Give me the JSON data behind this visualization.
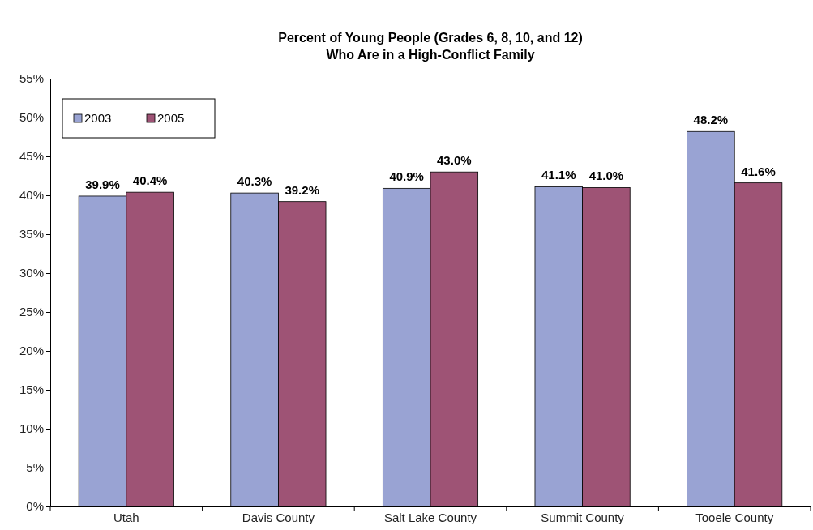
{
  "chart_data": {
    "type": "bar",
    "title": "Percent of Young People (Grades 6, 8, 10, and 12)\nWho Are in a High-Conflict Family",
    "categories": [
      "Utah",
      "Davis County",
      "Salt Lake County",
      "Summit County",
      "Tooele County"
    ],
    "series": [
      {
        "name": "2003",
        "color": "#99a3d3",
        "values": [
          39.9,
          40.3,
          40.9,
          41.1,
          48.2
        ],
        "value_labels": [
          "39.9%",
          "40.3%",
          "40.9%",
          "41.1%",
          "48.2%"
        ]
      },
      {
        "name": "2005",
        "color": "#9e5375",
        "values": [
          40.4,
          39.2,
          43.0,
          41.0,
          41.6
        ],
        "value_labels": [
          "40.4%",
          "39.2%",
          "43.0%",
          "41.0%",
          "41.6%"
        ]
      }
    ],
    "ylim": [
      0,
      55
    ],
    "yticks": [
      {
        "value": 0,
        "label": "0%"
      },
      {
        "value": 5,
        "label": "5%"
      },
      {
        "value": 10,
        "label": "10%"
      },
      {
        "value": 15,
        "label": "15%"
      },
      {
        "value": 20,
        "label": "20%"
      },
      {
        "value": 25,
        "label": "25%"
      },
      {
        "value": 30,
        "label": "30%"
      },
      {
        "value": 35,
        "label": "35%"
      },
      {
        "value": 40,
        "label": "40%"
      },
      {
        "value": 45,
        "label": "45%"
      },
      {
        "value": 50,
        "label": "50%"
      },
      {
        "value": 55,
        "label": "55%"
      }
    ],
    "grid": false,
    "legend": "top left"
  }
}
